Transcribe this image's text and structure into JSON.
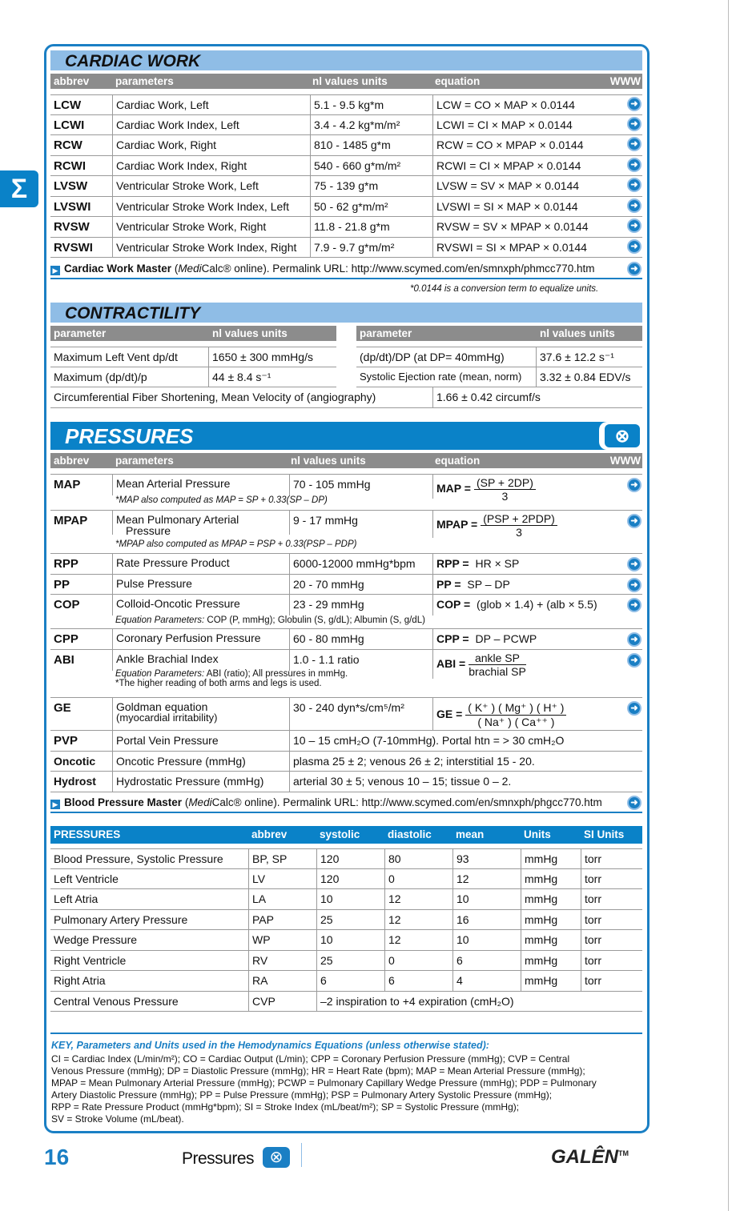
{
  "side_tab": {
    "icon": "sigma-icon",
    "label": "Σ"
  },
  "cardiac": {
    "title": "CARDIAC WORK",
    "headers": [
      "abbrev",
      "parameters",
      "nl values units",
      "equation",
      "WWW"
    ],
    "rows": [
      [
        "LCW",
        "Cardiac Work, Left",
        "5.1 - 9.5 kg*m",
        "LCW = CO × MAP × 0.0144"
      ],
      [
        "LCWI",
        "Cardiac Work Index, Left",
        "3.4 - 4.2 kg*m/m²",
        "LCWI = CI × MAP × 0.0144"
      ],
      [
        "RCW",
        "Cardiac Work, Right",
        "810 - 1485 g*m",
        "RCW = CO × MPAP × 0.0144"
      ],
      [
        "RCWI",
        "Cardiac Work Index, Right",
        "540 - 660 g*m/m²",
        "RCWI = CI × MPAP × 0.0144"
      ],
      [
        "LVSW",
        "Ventricular Stroke Work, Left",
        "75 - 139 g*m",
        "LVSW = SV × MAP × 0.0144"
      ],
      [
        "LVSWI",
        "Ventricular Stroke Work Index, Left",
        "50 - 62 g*m/m²",
        "LVSWI =  SI × MAP × 0.0144"
      ],
      [
        "RVSW",
        "Ventricular Stroke Work, Right",
        "11.8 - 21.8 g*m",
        "RVSW = SV × MPAP × 0.0144"
      ],
      [
        "RVSWI",
        "Ventricular Stroke Work Index, Right",
        "7.9 - 9.7 g*m/m²",
        "RVSWI = SI × MPAP × 0.0144"
      ]
    ],
    "master": {
      "name": "Cardiac Work Master",
      "pre": " (",
      "medi": "Medi",
      "calc": "Calc® online). Permalink URL: http://www.scymed.com/en/smnxph/phmcc770.htm"
    },
    "note": "*0.0144 is a conversion term to equalize units."
  },
  "contractility": {
    "title": "CONTRACTILITY",
    "headers": [
      "parameter",
      "nl values units"
    ],
    "left": [
      [
        "Maximum Left Vent dp/dt",
        "1650 ± 300 mmHg/s"
      ],
      [
        "Maximum (dp/dt)/p",
        "44 ± 8.4 s⁻¹"
      ]
    ],
    "right": [
      [
        "(dp/dt)/DP (at DP= 40mmHg)",
        "37.6 ± 12.2 s⁻¹"
      ],
      [
        "Systolic Ejection rate (mean, norm)",
        "3.32 ± 0.84 EDV/s"
      ]
    ],
    "full": [
      "Circumferential Fiber Shortening,   Mean Velocity of (angiography)",
      "1.66 ± 0.42 circumf/s"
    ]
  },
  "pressures": {
    "title": "PRESSURES",
    "icon": "pill-icon",
    "headers": [
      "abbrev",
      "parameters",
      "nl values units",
      "equation",
      "WWW"
    ],
    "map": {
      "ab": "MAP",
      "p": "Mean Arterial Pressure",
      "v": "70 - 105 mmHg",
      "lhs": "MAP =",
      "num": "(SP + 2DP)",
      "den": "3",
      "note": "*MAP also  computed as MAP = SP + 0.33(SP – DP)"
    },
    "mpap": {
      "ab": "MPAP",
      "p": "Mean Pulmonary Arterial",
      "p2": "Pressure",
      "v": "9 - 17 mmHg",
      "lhs": "MPAP =",
      "num": "(PSP + 2PDP)",
      "den": "3",
      "note": "*MPAP also  computed as MPAP = PSP + 0.33(PSP – PDP)"
    },
    "rpp": {
      "ab": "RPP",
      "p": "Rate Pressure Product",
      "v": "6000-12000 mmHg*bpm",
      "lhs": "RPP =",
      "rhs": " HR × SP"
    },
    "pp": {
      "ab": "PP",
      "p": "Pulse Pressure",
      "v": "20 - 70 mmHg",
      "lhs": "PP =",
      "rhs": " SP – DP"
    },
    "cop": {
      "ab": "COP",
      "p": "Colloid-Oncotic Pressure",
      "v": "23 - 29 mmHg",
      "lhs": "COP =",
      "rhs": " (glob × 1.4) + (alb × 5.5)",
      "note_i": "Equation Parameters:",
      "note": " COP (P, mmHg); Globulin (S, g/dL); Albumin (S, g/dL)"
    },
    "cpp": {
      "ab": "CPP",
      "p": "Coronary Perfusion Pressure",
      "v": "60 - 80 mmHg",
      "lhs": "CPP =",
      "rhs": " DP – PCWP"
    },
    "abi": {
      "ab": "ABI",
      "p": "Ankle Brachial Index",
      "v": "1.0 - 1.1 ratio",
      "lhs": "ABI  =",
      "num": "ankle SP",
      "den": "brachial SP",
      "note_i": "Equation Parameters:",
      "note": " ABI (ratio); All pressures in mmHg.",
      "note2": "*The higher reading of both arms and legs is used."
    },
    "ge": {
      "ab": "GE",
      "p": "Goldman equation",
      "p2": "(myocardial irritability)",
      "v": "30 -  240 dyn*s/cm⁵/m²",
      "lhs": "GE =",
      "num": "( K⁺ ) ( Mg⁺ ) ( H⁺ )",
      "den": "( Na⁺ ) ( Ca⁺⁺ )"
    },
    "wide": [
      [
        "PVP",
        "Portal Vein Pressure",
        "10 – 15 cmH₂O (7-10mmHg). Portal htn = > 30 cmH₂O"
      ],
      [
        "Oncotic",
        "Oncotic Pressure (mmHg)",
        "plasma 25 ± 2;  venous 26 ± 2; interstitial 15 - 20."
      ],
      [
        "Hydrost",
        "Hydrostatic Pressure (mmHg)",
        "arterial 30 ± 5; venous 10 – 15; tissue 0 – 2."
      ]
    ],
    "master": {
      "name": "Blood Pressure Master",
      "pre": " (",
      "medi": "Medi",
      "calc": "Calc® online). Permalink URL: http://www.scymed.com/en/smnxph/phgcc770.htm"
    }
  },
  "bp_table": {
    "headers": [
      "PRESSURES",
      "abbrev",
      "systolic",
      "diastolic",
      "mean",
      "Units",
      "SI Units"
    ],
    "rows": [
      [
        "Blood Pressure, Systolic Pressure",
        "BP, SP",
        "120",
        "80",
        "93",
        "mmHg",
        "torr"
      ],
      [
        "Left Ventricle",
        "LV",
        "120",
        "0",
        "12",
        "mmHg",
        "torr"
      ],
      [
        "Left Atria",
        "LA",
        "10",
        "12",
        "10",
        "mmHg",
        "torr"
      ],
      [
        "Pulmonary Artery Pressure",
        "PAP",
        "25",
        "12",
        "16",
        "mmHg",
        "torr"
      ],
      [
        "Wedge Pressure",
        "WP",
        "10",
        "12",
        "10",
        "mmHg",
        "torr"
      ],
      [
        "Right Ventricle",
        "RV",
        "25",
        "0",
        "6",
        "mmHg",
        "torr"
      ],
      [
        "Right Atria",
        "RA",
        "6",
        "6",
        "4",
        "mmHg",
        "torr"
      ]
    ],
    "cvp": [
      "Central Venous Pressure",
      "CVP",
      "–2 inspiration to +4 expiration (cmH₂O)"
    ]
  },
  "key": {
    "title": "KEY, Parameters and Units used in the Hemodynamics Equations (unless otherwise stated):",
    "lines": [
      "CI = Cardiac Index (L/min/m²); CO = Cardiac Output (L/min); CPP = Coronary Perfusion Pressure (mmHg); CVP = Central",
      "Venous Pressure (mmHg); DP = Diastolic Pressure (mmHg); HR = Heart Rate (bpm); MAP = Mean Arterial Pressure (mmHg);",
      "MPAP = Mean Pulmonary Arterial Pressure (mmHg); PCWP = Pulmonary Capillary Wedge Pressure (mmHg); PDP = Pulmonary",
      "Artery Diastolic Pressure (mmHg); PP = Pulse Pressure (mmHg); PSP = Pulmonary Artery Systolic Pressure (mmHg);",
      "RPP = Rate Pressure Product (mmHg*bpm); SI = Stroke Index (mL/beat/m²); SP = Systolic Pressure (mmHg);",
      "SV = Stroke Volume (mL/beat)."
    ]
  },
  "footer": {
    "page": "16",
    "section": "Pressures",
    "brand": "GALÊN",
    "tm": "TM"
  },
  "colors": {
    "accent": "#1a7fc4",
    "band_light": "#8fbde6",
    "header_gray": "#8c8c8c"
  }
}
